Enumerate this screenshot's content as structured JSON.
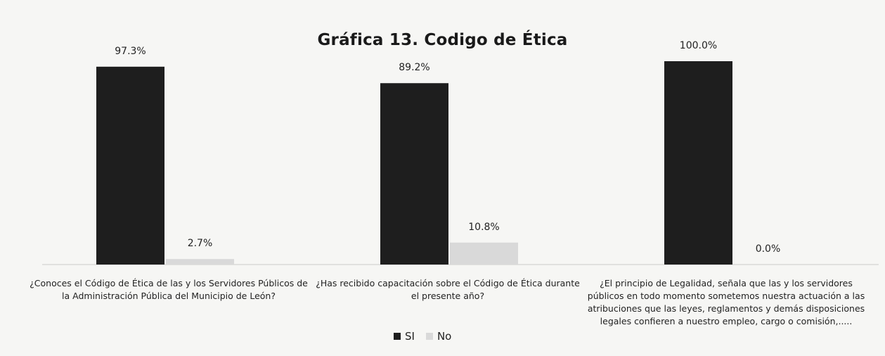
{
  "chart_data": {
    "type": "bar",
    "title": "Gráfica 13. Codigo de Ética",
    "categories": [
      "¿Conoces el Código de Ética de las y los Servidores Públicos de la Administración Pública del Municipio de León?",
      "¿Has recibido capacitación sobre el Código de Ética durante el presente año?",
      "¿El principio de Legalidad, señala que las y los servidores públicos en todo momento sometemos nuestra actuación a las atribuciones que las leyes, reglamentos y demás disposiciones legales confieren a nuestro empleo, cargo o comisión,....."
    ],
    "series": [
      {
        "name": "SI",
        "color": "#1e1e1e",
        "values": [
          97.3,
          89.2,
          100.0
        ],
        "labels": [
          "97.3%",
          "89.2%",
          "100.0%"
        ]
      },
      {
        "name": "No",
        "color": "#d9d9d9",
        "values": [
          2.7,
          10.8,
          0.0
        ],
        "labels": [
          "2.7%",
          "10.8%",
          "0.0%"
        ]
      }
    ],
    "ylim": [
      0,
      100
    ],
    "unit": "%",
    "grid": false,
    "legend_position": "bottom"
  }
}
